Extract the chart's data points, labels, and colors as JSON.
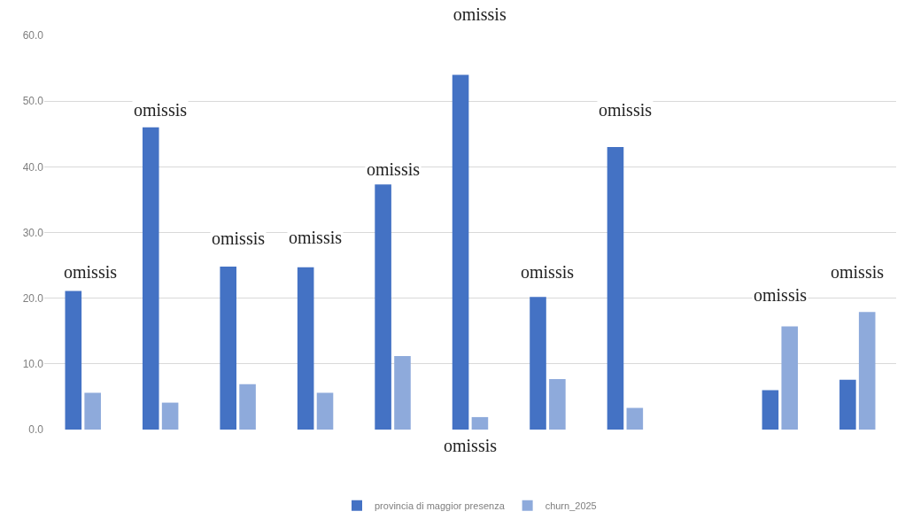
{
  "chart_data": {
    "type": "bar",
    "title": "omissis",
    "xlabel": "omissis",
    "categories": [
      null,
      null,
      null,
      null,
      null,
      null,
      null,
      null,
      null,
      null,
      null
    ],
    "series": [
      {
        "name": "provincia di maggior presenza",
        "color": "#4472c4",
        "values": [
          21.1,
          46.0,
          24.8,
          24.7,
          37.3,
          54.0,
          20.2,
          43.0,
          null,
          6.0,
          7.6
        ]
      },
      {
        "name": "churn_2025",
        "color": "#8eaadb",
        "values": [
          5.6,
          4.1,
          6.9,
          5.6,
          11.2,
          1.9,
          7.7,
          3.3,
          null,
          15.7,
          17.9
        ]
      }
    ],
    "annotations": [
      "omissis",
      "omissis",
      "omissis",
      "omissis",
      "omissis",
      "omissis",
      "omissis",
      "omissis",
      "omissis"
    ],
    "ylim": [
      0,
      60
    ],
    "yticks": [
      {
        "value": 0,
        "label": "0.0"
      },
      {
        "value": 10,
        "label": "10.0"
      },
      {
        "value": 20,
        "label": "20.0"
      },
      {
        "value": 30,
        "label": "30.0"
      },
      {
        "value": 40,
        "label": "40.0"
      },
      {
        "value": 50,
        "label": "50.0"
      },
      {
        "value": 60,
        "label": "60.0"
      }
    ],
    "grid": "y",
    "legend": "bottom",
    "tick_labels": "y"
  }
}
